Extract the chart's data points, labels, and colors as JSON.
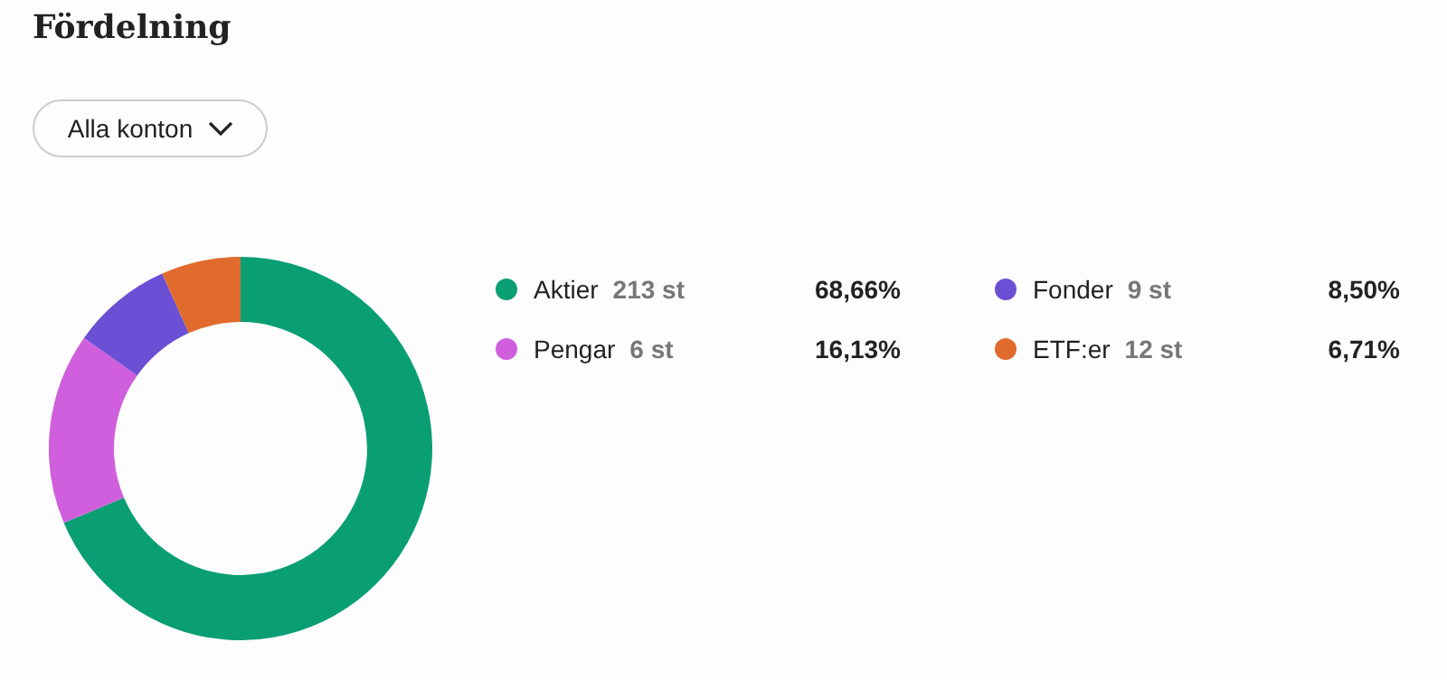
{
  "chart_data": {
    "type": "donut",
    "title": "Fördelning",
    "subtitle": "Alla konton",
    "categories": [
      "Aktier",
      "Pengar",
      "Fonder",
      "ETF:er"
    ],
    "values": [
      68.66,
      16.13,
      8.5,
      6.71
    ],
    "value_labels": [
      "68,66%",
      "16,13%",
      "8,50%",
      "6,71%"
    ],
    "colors": [
      "#0a9e73",
      "#cf5fdc",
      "#6b4fd4",
      "#e06b2c"
    ],
    "annotations": [
      "213 st",
      "6 st",
      "9 st",
      "12 st"
    ],
    "legend": "right"
  }
}
